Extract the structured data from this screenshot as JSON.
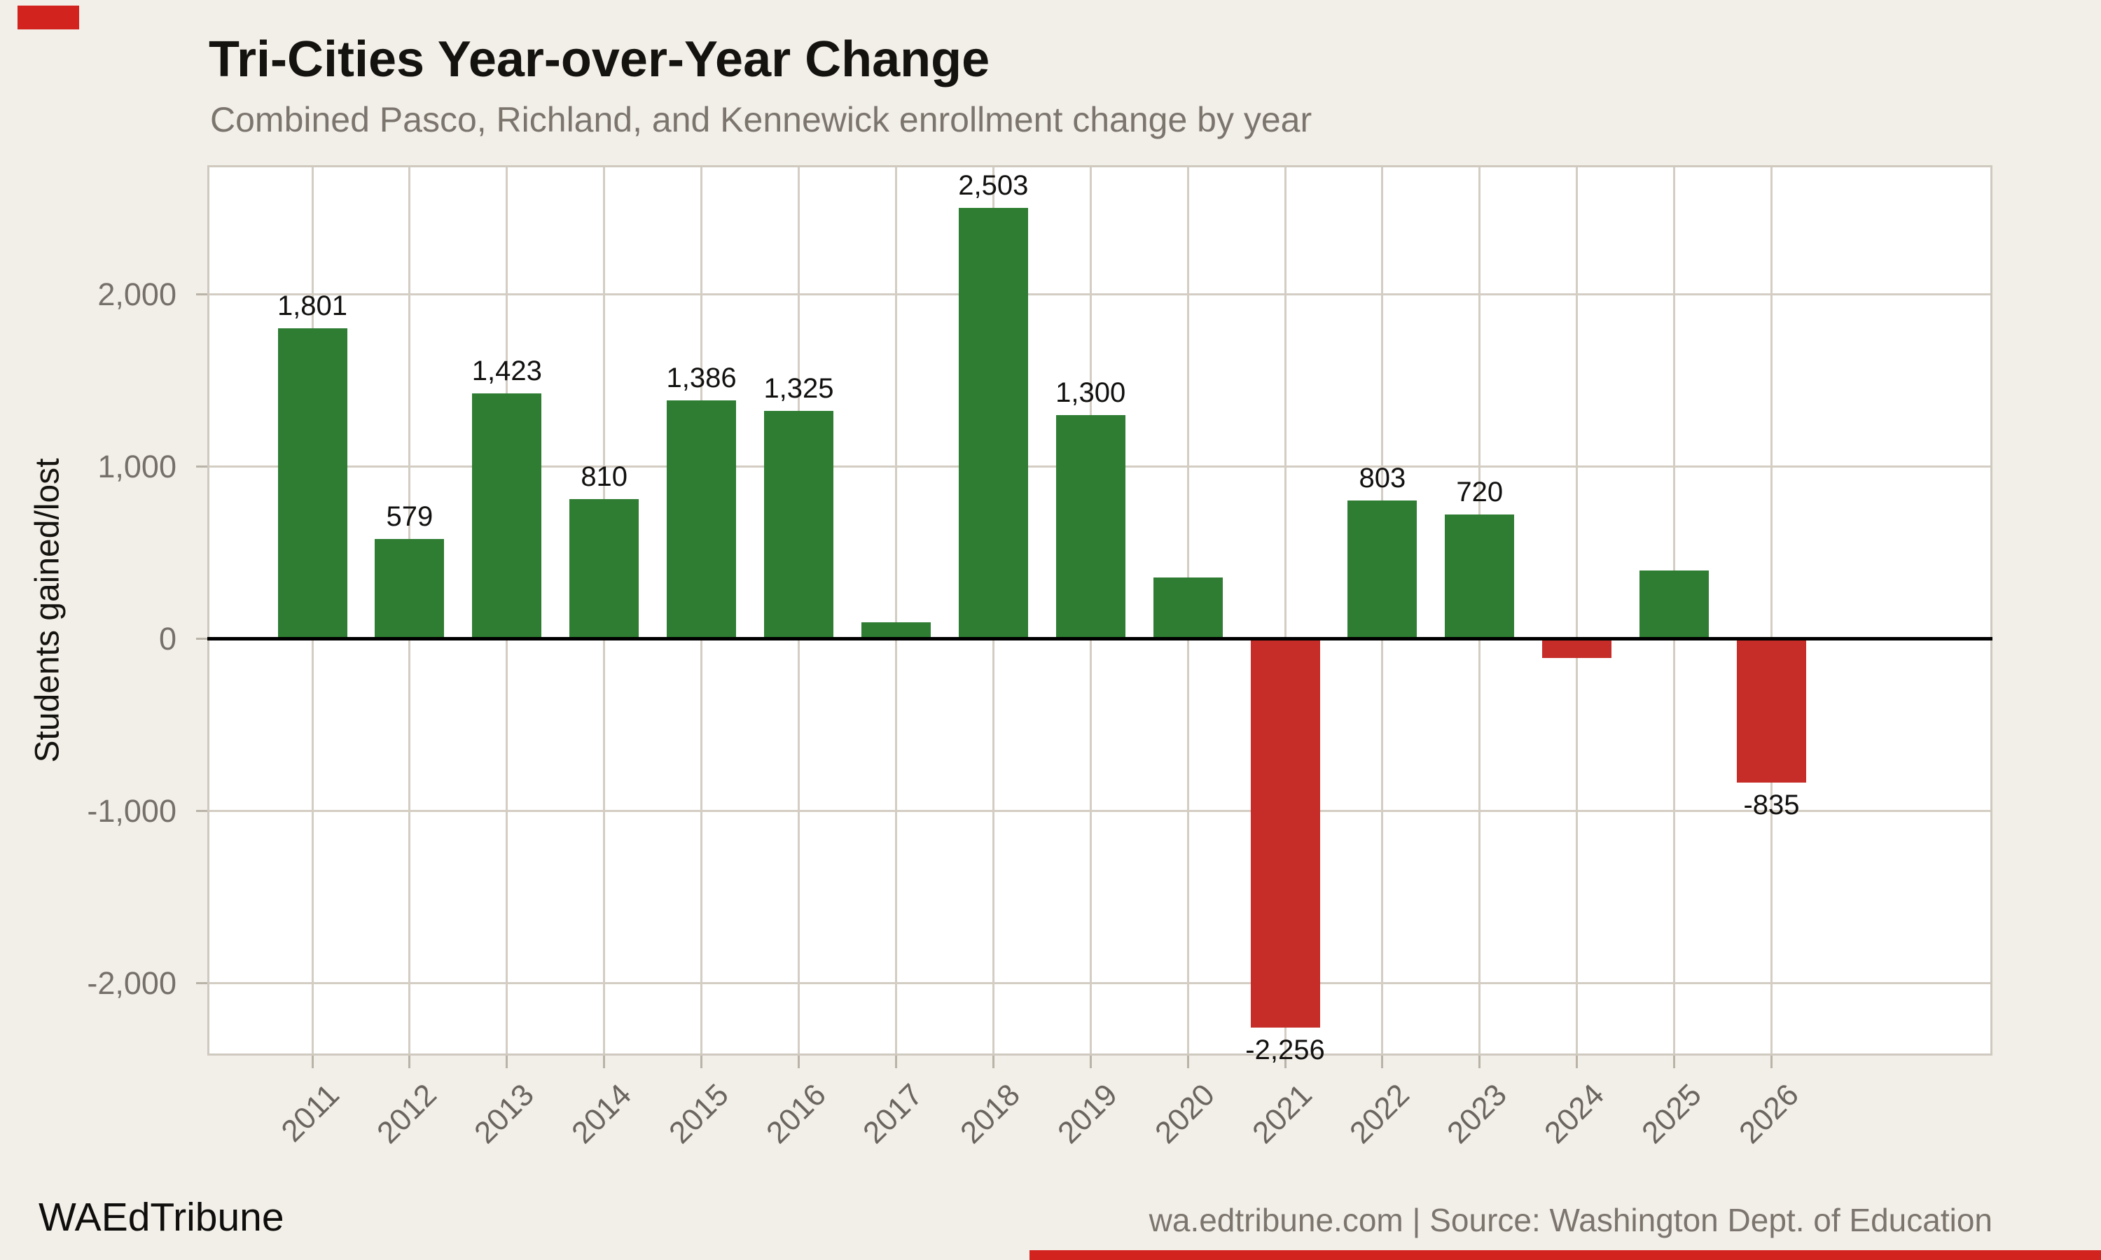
{
  "header": {
    "title": "Tri-Cities Year-over-Year Change",
    "subtitle": "Combined Pasco, Richland, and Kennewick enrollment change by year"
  },
  "footer": {
    "brand": "WAEdTribune",
    "attribution": "wa.edtribune.com | Source: Washington Dept. of Education"
  },
  "colors": {
    "background": "#f2efe8",
    "panel": "#ffffff",
    "grid": "#d3cdc3",
    "positive": "#2e7d32",
    "negative": "#c62d28",
    "zero_line": "#000000",
    "brand_red": "#d2231e"
  },
  "chart_data": {
    "type": "bar",
    "title": "Tri-Cities Year-over-Year Change",
    "subtitle": "Combined Pasco, Richland, and Kennewick enrollment change by year",
    "xlabel": "",
    "ylabel": "Students gained/lost",
    "categories": [
      "2011",
      "2012",
      "2013",
      "2014",
      "2015",
      "2016",
      "2017",
      "2018",
      "2019",
      "2020",
      "2021",
      "2022",
      "2023",
      "2024",
      "2025",
      "2026"
    ],
    "values": [
      1801,
      579,
      1423,
      810,
      1386,
      1325,
      95,
      2503,
      1300,
      355,
      -2256,
      803,
      720,
      -110,
      395,
      -835
    ],
    "bar_labels": [
      "1,801",
      "579",
      "1,423",
      "810",
      "1,386",
      "1,325",
      null,
      "2,503",
      "1,300",
      null,
      "-2,256",
      "803",
      "720",
      null,
      null,
      "-835"
    ],
    "yticks": [
      {
        "v": 2000,
        "label": "2,000"
      },
      {
        "v": 1000,
        "label": "1,000"
      },
      {
        "v": 0,
        "label": "0"
      },
      {
        "v": -1000,
        "label": "-1,000"
      },
      {
        "v": -2000,
        "label": "-2,000"
      }
    ],
    "ylim": [
      -2420,
      2750
    ],
    "grid": true,
    "legend": "none",
    "color_rule": "green for gains, red for losses"
  }
}
